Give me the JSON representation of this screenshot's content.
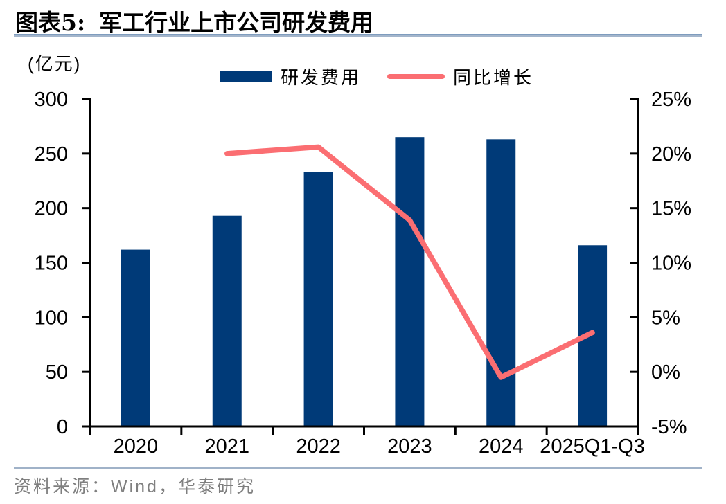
{
  "header": {
    "figure_label": "图表5:",
    "title": "军工行业上市公司研发费用"
  },
  "legend": [
    {
      "label": "研发费用",
      "type": "bar",
      "color": "#003a78"
    },
    {
      "label": "同比增长",
      "type": "line",
      "color": "#fb6e72"
    }
  ],
  "chart_data": {
    "type": "bar+line",
    "unit_label": "(亿元)",
    "categories": [
      "2020",
      "2021",
      "2022",
      "2023",
      "2024",
      "2025Q1-Q3"
    ],
    "series": [
      {
        "name": "研发费用",
        "type": "bar",
        "axis": "left",
        "color": "#003a78",
        "values": [
          162,
          193,
          233,
          265,
          263,
          166
        ]
      },
      {
        "name": "同比增长",
        "type": "line",
        "axis": "right",
        "color": "#fb6e72",
        "values": [
          null,
          20.0,
          20.6,
          13.9,
          -0.5,
          3.6
        ]
      }
    ],
    "left_axis": {
      "label": "(亿元)",
      "min": 0,
      "max": 300,
      "ticks": [
        0,
        50,
        100,
        150,
        200,
        250,
        300
      ]
    },
    "right_axis": {
      "min": -5,
      "max": 25,
      "ticks": [
        "-5%",
        "0%",
        "5%",
        "10%",
        "15%",
        "20%",
        "25%"
      ]
    },
    "grid": false,
    "legend_position": "top-center"
  },
  "footer": {
    "source": "资料来源：Wind，华泰研究"
  },
  "colors": {
    "bar": "#003a78",
    "line": "#fb6e72",
    "axis": "#000000",
    "divider": "#a3b5cb",
    "source_text": "#7f7f7f"
  }
}
